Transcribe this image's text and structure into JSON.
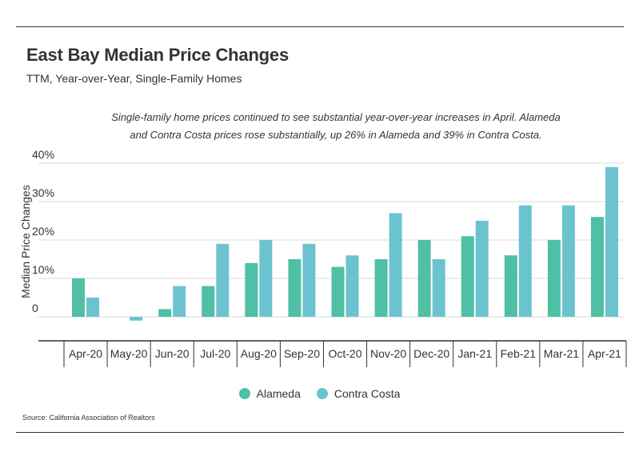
{
  "title": "East Bay Median Price Changes",
  "subtitle": "TTM, Year-over-Year, Single-Family Homes",
  "annotation_line1": "Single-family home prices continued to see substantial year-over-year increases in April. Alameda",
  "annotation_line2": "and Contra Costa prices rose substantially, up 26% in Alameda and 39% in Contra Costa.",
  "source": "Source:  California Association of Realtors",
  "colors": {
    "alameda": "#4fbfa5",
    "contra_costa": "#6cc3d0",
    "grid": "#d9d9d9",
    "axis": "#333333"
  },
  "chart_data": {
    "type": "bar",
    "categories": [
      "Apr-20",
      "May-20",
      "Jun-20",
      "Jul-20",
      "Aug-20",
      "Sep-20",
      "Oct-20",
      "Nov-20",
      "Dec-20",
      "Jan-21",
      "Feb-21",
      "Mar-21",
      "Apr-21"
    ],
    "series": [
      {
        "name": "Alameda",
        "values": [
          10,
          0,
          2,
          8,
          14,
          15,
          13,
          15,
          20,
          21,
          16,
          20,
          26
        ]
      },
      {
        "name": "Contra Costa",
        "values": [
          5,
          -1,
          8,
          19,
          20,
          19,
          16,
          27,
          15,
          25,
          29,
          29,
          39
        ]
      }
    ],
    "ylabel": "Median Price Changes",
    "yticks": [
      "0",
      "10%",
      "20%",
      "30%",
      "40%"
    ],
    "ytick_values": [
      0,
      10,
      20,
      30,
      40
    ],
    "ylim": [
      -7,
      42
    ],
    "grid": true,
    "legend": "bottom-center"
  }
}
